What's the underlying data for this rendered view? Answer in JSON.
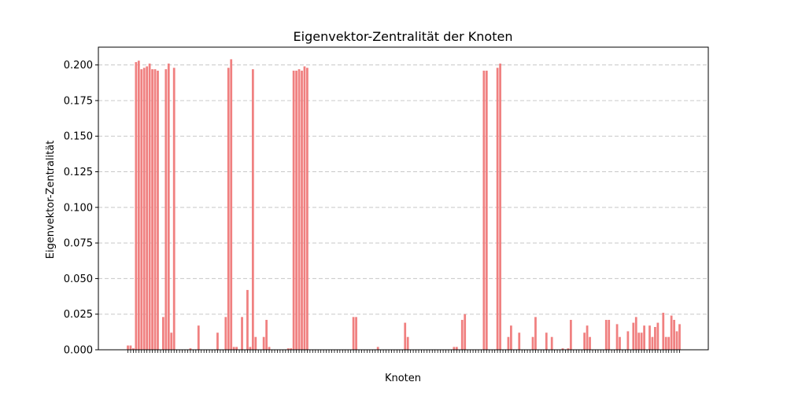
{
  "chart_data": {
    "type": "bar",
    "title": "Eigenvektor-Zentralität der Knoten",
    "xlabel": "Knoten",
    "ylabel": "Eigenvektor-Zentralität",
    "ylim": [
      0,
      0.2125
    ],
    "yticks": [
      "0.000",
      "0.025",
      "0.050",
      "0.075",
      "0.100",
      "0.125",
      "0.150",
      "0.175",
      "0.200"
    ],
    "grid": "horizontal-dashed",
    "bar_color": "#f08080",
    "values": [
      0.003,
      0.003,
      0.001,
      0.202,
      0.203,
      0.197,
      0.198,
      0.199,
      0.201,
      0.197,
      0.197,
      0.196,
      0.0,
      0.023,
      0.197,
      0.201,
      0.012,
      0.198,
      0.0,
      0.0,
      0.0,
      0.0,
      0.0,
      0.001,
      0.0,
      0.0,
      0.017,
      0.0,
      0.0,
      0.0,
      0.0,
      0.0,
      0.0,
      0.012,
      0.0,
      0.0,
      0.023,
      0.198,
      0.204,
      0.002,
      0.002,
      0.0,
      0.023,
      0.0,
      0.042,
      0.002,
      0.197,
      0.009,
      0.0,
      0.0,
      0.009,
      0.021,
      0.002,
      0.0,
      0.0,
      0.0,
      0.0,
      0.0,
      0.0,
      0.001,
      0.001,
      0.196,
      0.196,
      0.197,
      0.196,
      0.199,
      0.198,
      0.0,
      0.0,
      0.0,
      0.0,
      0.0,
      0.0,
      0.0,
      0.0,
      0.0,
      0.0,
      0.0,
      0.0,
      0.0,
      0.0,
      0.0,
      0.0,
      0.023,
      0.023,
      0.0,
      0.0,
      0.0,
      0.0,
      0.0,
      0.0,
      0.0,
      0.002,
      0.0,
      0.0,
      0.0,
      0.0,
      0.0,
      0.0,
      0.0,
      0.0,
      0.0,
      0.019,
      0.009,
      0.0,
      0.0,
      0.0,
      0.0,
      0.0,
      0.0,
      0.0,
      0.0,
      0.0,
      0.0,
      0.0,
      0.0,
      0.0,
      0.0,
      0.0,
      0.0,
      0.002,
      0.002,
      0.0,
      0.021,
      0.025,
      0.0,
      0.0,
      0.0,
      0.0,
      0.0,
      0.0,
      0.196,
      0.196,
      0.0,
      0.0,
      0.0,
      0.198,
      0.201,
      0.0,
      0.0,
      0.009,
      0.017,
      0.0,
      0.0,
      0.012,
      0.0,
      0.0,
      0.0,
      0.0,
      0.009,
      0.023,
      0.0,
      0.0,
      0.0,
      0.012,
      0.0,
      0.009,
      0.0,
      0.0,
      0.0,
      0.001,
      0.0,
      0.001,
      0.021,
      0.0,
      0.0,
      0.0,
      0.0,
      0.012,
      0.017,
      0.009,
      0.0,
      0.0,
      0.0,
      0.0,
      0.0,
      0.021,
      0.021,
      0.0,
      0.0,
      0.018,
      0.009,
      0.0,
      0.0,
      0.013,
      0.0,
      0.019,
      0.023,
      0.012,
      0.012,
      0.017,
      0.0,
      0.017,
      0.009,
      0.016,
      0.019,
      0.0,
      0.026,
      0.009,
      0.009,
      0.024,
      0.021,
      0.013,
      0.018
    ]
  }
}
